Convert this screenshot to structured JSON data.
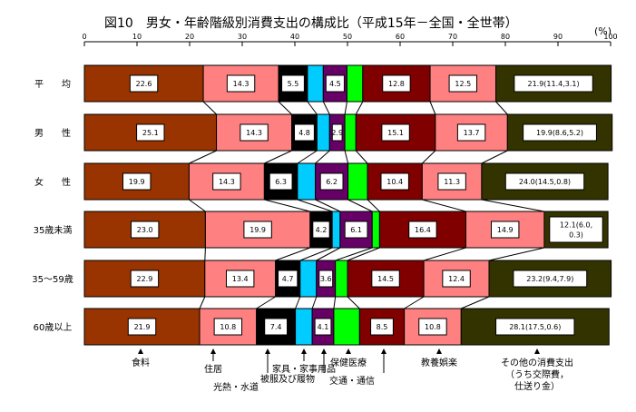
{
  "title": "図10　男女・年齢階級別消費支出の構成比（平成15年－全国・全世帯）",
  "unit": "(%)",
  "chart_data": {
    "type": "bar",
    "orientation": "horizontal",
    "stacked": true,
    "xlim": [
      0,
      100
    ],
    "x_ticks": [
      0,
      10,
      20,
      30,
      40,
      50,
      60,
      70,
      80,
      90,
      100
    ],
    "grid": false,
    "legend": "bottom",
    "categories": [
      "平　　均",
      "男　　性",
      "女　　性",
      "35歳未満",
      "35～59歳",
      "60歳以上"
    ],
    "colors": [
      "#993300",
      "#FF8080",
      "#000000",
      "#00CCFF",
      "#660066",
      "#00FF00",
      "#800000",
      "#FF8080",
      "#333300"
    ],
    "series": [
      {
        "name": "食料",
        "values": [
          22.6,
          25.1,
          19.9,
          23.0,
          22.9,
          21.9
        ]
      },
      {
        "name": "住居",
        "values": [
          14.3,
          14.3,
          14.3,
          19.9,
          13.4,
          10.8
        ]
      },
      {
        "name": "光熱・水道",
        "values": [
          5.5,
          4.8,
          6.3,
          4.2,
          4.7,
          7.4
        ]
      },
      {
        "name": "家具・家事用品",
        "values": [
          3.0,
          2.4,
          3.4,
          1.5,
          3.1,
          3.2
        ]
      },
      {
        "name": "被服及び履物",
        "values": [
          4.5,
          2.9,
          6.2,
          6.1,
          3.6,
          4.1
        ]
      },
      {
        "name": "保健医療",
        "values": [
          3.0,
          2.1,
          3.7,
          1.4,
          2.3,
          4.9
        ]
      },
      {
        "name": "交通・通信",
        "values": [
          12.8,
          15.1,
          10.4,
          16.4,
          14.5,
          8.5
        ]
      },
      {
        "name": "教養娯楽",
        "values": [
          12.5,
          13.7,
          11.3,
          14.9,
          12.4,
          10.8
        ]
      },
      {
        "name": "その他の消費支出（うち交際費，仕送り金）",
        "values": [
          21.9,
          19.9,
          24.0,
          12.1,
          23.2,
          28.1
        ]
      }
    ],
    "bar_labels": [
      [
        "22.6",
        "14.3",
        "5.5",
        "",
        "4.5",
        "",
        "12.8",
        "12.5",
        "21.9(11.4,3.1)"
      ],
      [
        "25.1",
        "14.3",
        "4.8",
        "",
        "2.9",
        "",
        "15.1",
        "13.7",
        "19.9(8.6,5.2)"
      ],
      [
        "19.9",
        "14.3",
        "6.3",
        "",
        "6.2",
        "",
        "10.4",
        "11.3",
        "24.0(14.5,0.8)"
      ],
      [
        "23.0",
        "19.9",
        "4.2",
        "",
        "6.1",
        "",
        "16.4",
        "14.9",
        "12.1(6.0,|0.3)"
      ],
      [
        "22.9",
        "13.4",
        "4.7",
        "",
        "3.6",
        "",
        "14.5",
        "12.4",
        "23.2(9.4,7.9)"
      ],
      [
        "21.9",
        "10.8",
        "7.4",
        "",
        "4.1",
        "",
        "8.5",
        "10.8",
        "28.1(17.5,0.6)"
      ]
    ],
    "legend_labels": [
      {
        "series": 0,
        "text": "食料"
      },
      {
        "series": 1,
        "text": "住居"
      },
      {
        "series": 2,
        "text": "光熱・水道"
      },
      {
        "series": 3,
        "text": "家具・家事用品"
      },
      {
        "series": 4,
        "text": "被服及び履物"
      },
      {
        "series": 5,
        "text": "保健医療"
      },
      {
        "series": 6,
        "text": "交通・通信"
      },
      {
        "series": 7,
        "text": "教養娯楽"
      },
      {
        "series": 8,
        "text": "その他の消費支出|（うち交際費，|仕送り金）"
      }
    ]
  }
}
